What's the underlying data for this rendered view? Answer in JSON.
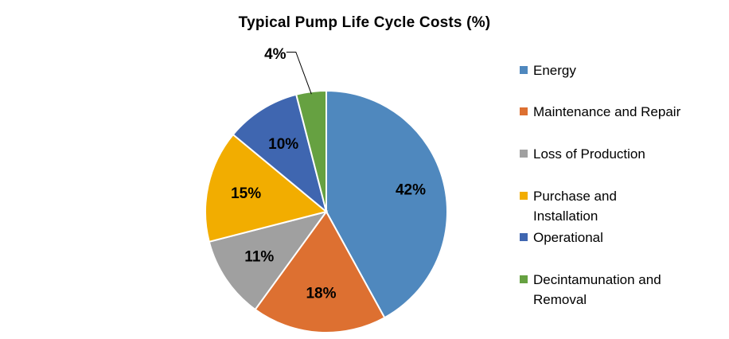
{
  "chart_data": {
    "type": "pie",
    "title": "Typical Pump Life Cycle Costs (%)",
    "legend_position": "right",
    "start_angle_deg": 0,
    "direction": "clockwise",
    "slices": [
      {
        "name": "Energy",
        "value": 42,
        "label": "42%",
        "color": "#4f88be"
      },
      {
        "name": "Maintenance and Repair",
        "value": 18,
        "label": "18%",
        "color": "#dd7031"
      },
      {
        "name": "Loss of Production",
        "value": 11,
        "label": "11%",
        "color": "#a0a0a0"
      },
      {
        "name": "Purchase and Installation",
        "value": 15,
        "label": "15%",
        "color": "#f2ad00"
      },
      {
        "name": "Operational",
        "value": 10,
        "label": "10%",
        "color": "#3f66b0"
      },
      {
        "name": "Decintamunation and Removal",
        "value": 4,
        "label": "4%",
        "color": "#66a141"
      }
    ]
  }
}
